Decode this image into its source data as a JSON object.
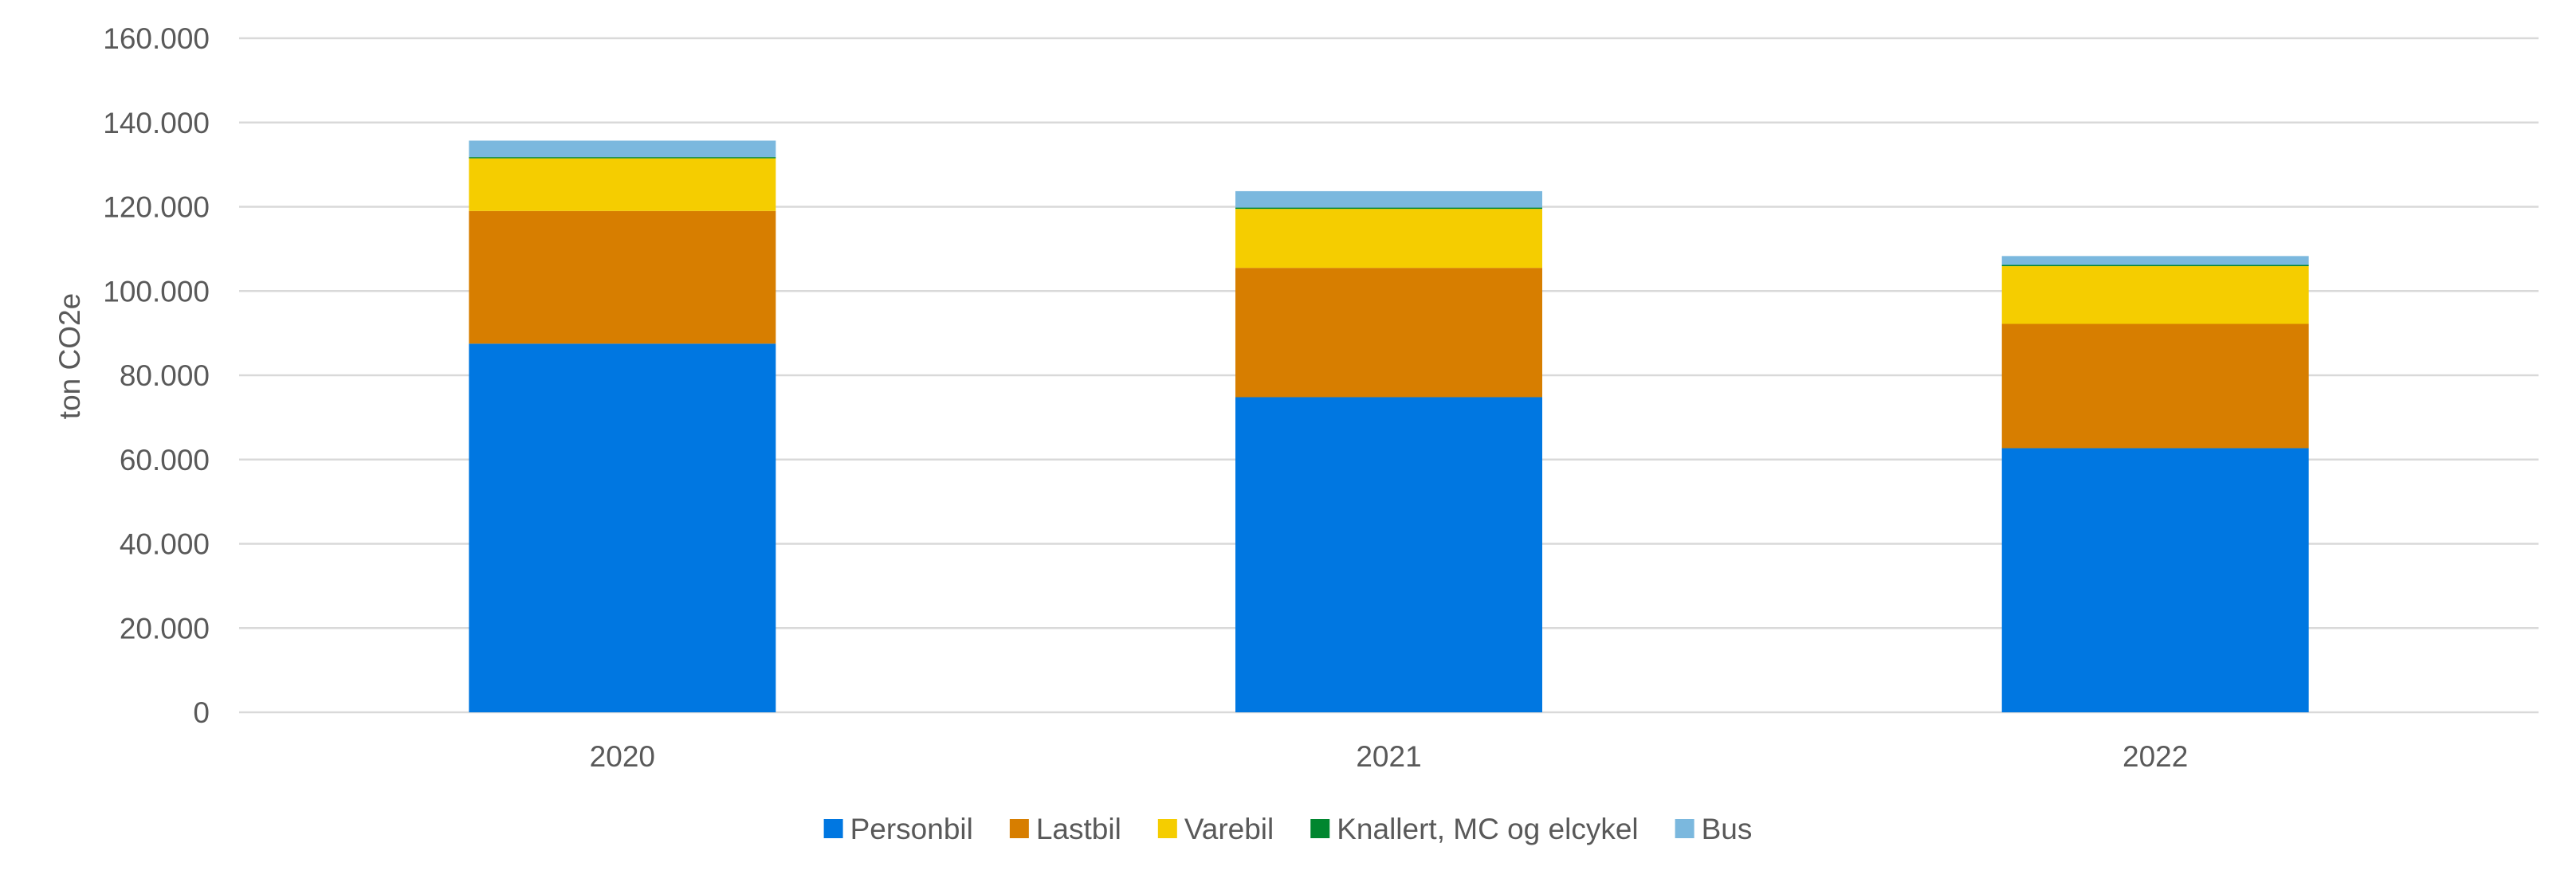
{
  "chart_data": {
    "type": "bar",
    "stacked": true,
    "title": "",
    "xlabel": "",
    "ylabel": "ton CO2e",
    "categories": [
      "2020",
      "2021",
      "2022"
    ],
    "series": [
      {
        "name": "Personbil",
        "color": "#0077E1",
        "values": [
          87500,
          74800,
          62700
        ]
      },
      {
        "name": "Lastbil",
        "color": "#D77E00",
        "values": [
          31500,
          30700,
          29500
        ]
      },
      {
        "name": "Varebil",
        "color": "#F5CD00",
        "values": [
          12500,
          14000,
          13700
        ]
      },
      {
        "name": "Knallert, MC og elcykel",
        "color": "#00862F",
        "values": [
          300,
          300,
          300
        ]
      },
      {
        "name": "Bus",
        "color": "#7BB8DE",
        "values": [
          3900,
          3900,
          2100
        ]
      }
    ],
    "ylim": [
      0,
      160000
    ],
    "yticks": [
      0,
      20000,
      40000,
      60000,
      80000,
      100000,
      120000,
      140000,
      160000
    ],
    "ytick_labels": [
      "0",
      "20.000",
      "40.000",
      "60.000",
      "80.000",
      "100.000",
      "120.000",
      "140.000",
      "160.000"
    ],
    "grid": true,
    "legend_position": "bottom"
  }
}
